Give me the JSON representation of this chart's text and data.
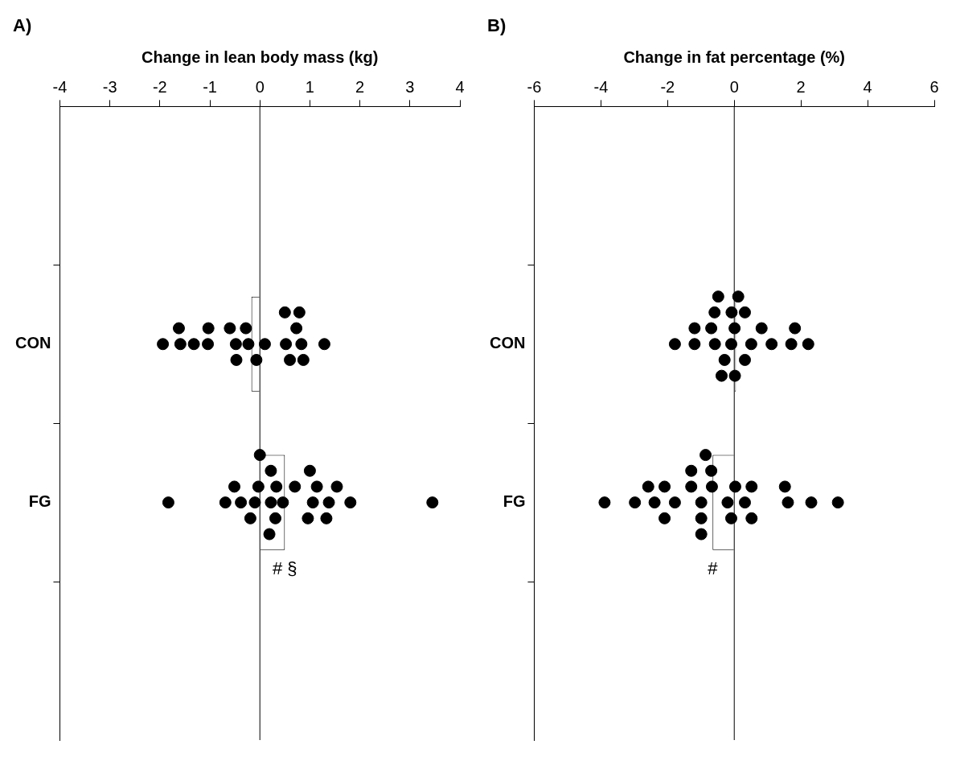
{
  "chart_data": [
    {
      "type": "bar",
      "orientation": "horizontal",
      "title": "A)",
      "xlabel": "Change in lean body mass (kg)",
      "categories": [
        "CON",
        "FG"
      ],
      "series": [
        {
          "type": "bar",
          "color": "#ffffff",
          "values": [
            -0.17,
            0.5
          ]
        },
        {
          "type": "scatter",
          "color": "#000000",
          "x": [
            "CON",
            "CON",
            "CON",
            "CON",
            "CON",
            "CON",
            "CON",
            "CON",
            "CON",
            "CON",
            "CON",
            "CON",
            "CON",
            "CON",
            "CON",
            "CON",
            "CON",
            "CON",
            "CON",
            "CON",
            "CON",
            "FG",
            "FG",
            "FG",
            "FG",
            "FG",
            "FG",
            "FG",
            "FG",
            "FG",
            "FG",
            "FG",
            "FG",
            "FG",
            "FG",
            "FG",
            "FG",
            "FG",
            "FG",
            "FG",
            "FG",
            "FG",
            "FG",
            "FG",
            "FG"
          ],
          "values": [
            -1.59,
            -1.32,
            -1.04,
            -0.48,
            0.83,
            0.52,
            0.73,
            0.87,
            -1.62,
            -0.28,
            0.1,
            0.79,
            1.29,
            -1.94,
            -0.6,
            -0.07,
            0.6,
            -1.03,
            -0.47,
            -0.23,
            0.5,
            0.22,
            0.33,
            0.46,
            1.81,
            -0.38,
            -0.1,
            0.31,
            1.06,
            1.38,
            -0.69,
            0.22,
            1.14,
            1.33,
            1.54,
            -0.03,
            0.19,
            0.7,
            0.96,
            1.0,
            -1.83,
            -0.51,
            -0.19,
            0.0,
            3.45
          ]
        }
      ],
      "xlim": [
        -4,
        4
      ],
      "xticks": [
        -4,
        -3,
        -2,
        -1,
        0,
        1,
        2,
        3,
        4
      ],
      "ref_lines": [
        {
          "axis": "x",
          "value": 0,
          "color": "#000000"
        }
      ],
      "annotations": [
        "# §"
      ],
      "marker": "circle",
      "grid": false,
      "legend": false
    },
    {
      "type": "bar",
      "orientation": "horizontal",
      "title": "B)",
      "xlabel": "Change in fat percentage (%)",
      "categories": [
        "CON",
        "FG"
      ],
      "series": [
        {
          "type": "bar",
          "color": "#ffffff",
          "values": [
            0.05,
            -0.65
          ]
        },
        {
          "type": "scatter",
          "color": "#000000",
          "x": [
            "CON",
            "CON",
            "CON",
            "CON",
            "CON",
            "CON",
            "CON",
            "CON",
            "CON",
            "CON",
            "CON",
            "CON",
            "CON",
            "CON",
            "CON",
            "CON",
            "CON",
            "CON",
            "CON",
            "CON",
            "CON",
            "CON",
            "FG",
            "FG",
            "FG",
            "FG",
            "FG",
            "FG",
            "FG",
            "FG",
            "FG",
            "FG",
            "FG",
            "FG",
            "FG",
            "FG",
            "FG",
            "FG",
            "FG",
            "FG",
            "FG",
            "FG",
            "FG",
            "FG",
            "FG",
            "FG",
            "FG"
          ],
          "values": [
            -0.09,
            0.51,
            1.12,
            1.71,
            2.22,
            -1.78,
            -0.58,
            0.01,
            0.32,
            -1.19,
            -0.69,
            -0.29,
            -0.08,
            0.02,
            -0.38,
            0.12,
            0.82,
            1.82,
            -1.19,
            -0.59,
            -0.48,
            0.32,
            -2.98,
            -2.39,
            -0.99,
            -0.67,
            0.32,
            -1.29,
            -0.99,
            -0.2,
            0.03,
            0.52,
            -3.89,
            -2.58,
            -2.09,
            -0.09,
            3.11,
            -1.78,
            -1.29,
            -0.69,
            1.61,
            2.31,
            -2.09,
            -0.99,
            -0.86,
            0.52,
            1.52
          ]
        }
      ],
      "xlim": [
        -6,
        6
      ],
      "xticks": [
        -6,
        -4,
        -2,
        0,
        2,
        4,
        6
      ],
      "ref_lines": [
        {
          "axis": "x",
          "value": 0,
          "color": "#000000"
        }
      ],
      "annotations": [
        "#"
      ],
      "marker": "circle",
      "grid": false,
      "legend": false
    }
  ]
}
